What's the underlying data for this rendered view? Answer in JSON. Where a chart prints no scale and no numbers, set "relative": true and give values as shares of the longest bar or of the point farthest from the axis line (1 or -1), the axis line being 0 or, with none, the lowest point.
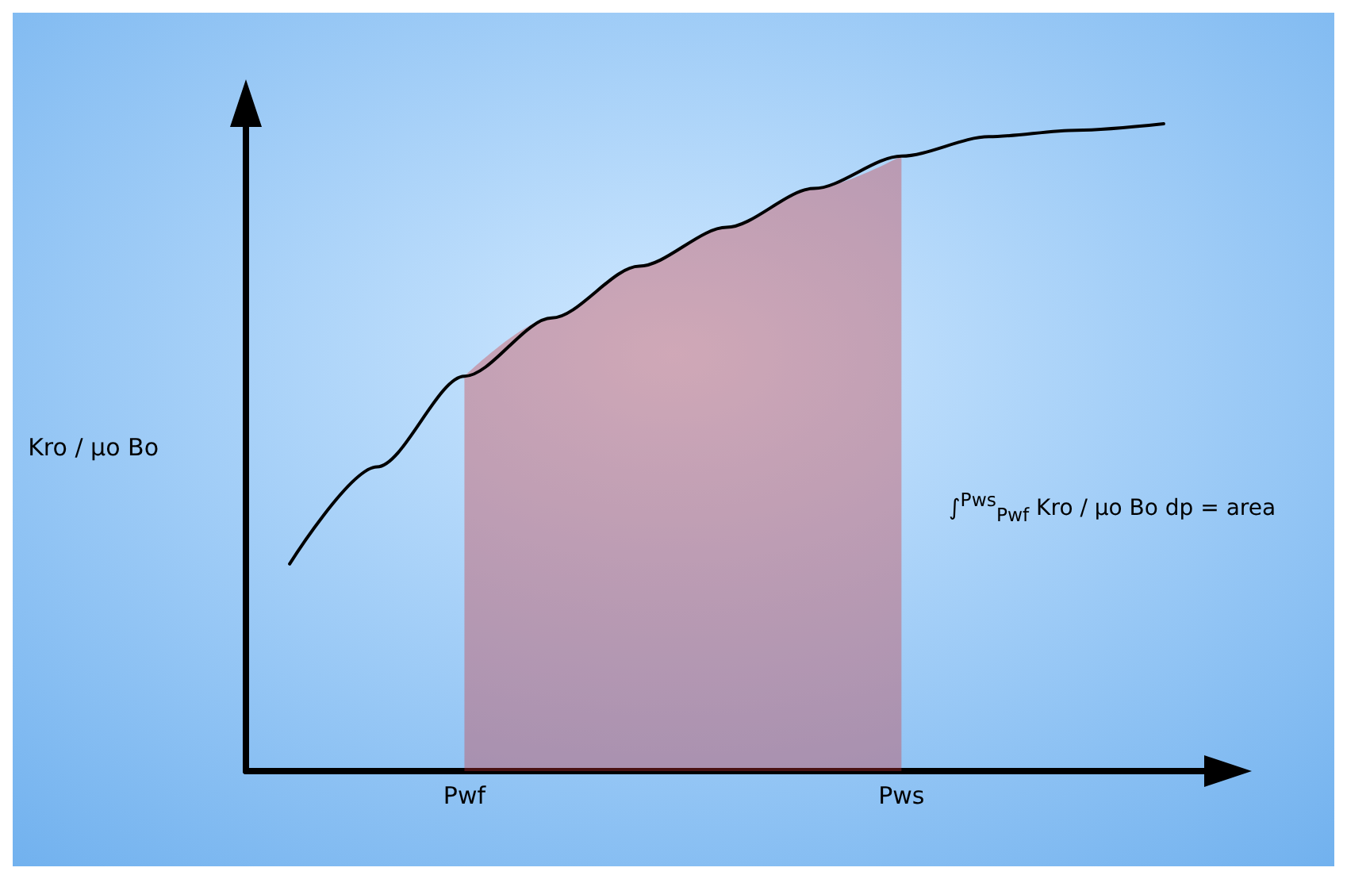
{
  "chart_data": {
    "type": "line",
    "relative": true,
    "ylabel": "Kro / μo Bo",
    "categories": [
      null,
      null,
      "Pwf",
      null,
      null,
      null,
      null,
      "Pws",
      null,
      null,
      null
    ],
    "series": [
      {
        "color": "#000000",
        "values": [
          0.32,
          0.47,
          0.61,
          0.7,
          0.78,
          0.84,
          0.9,
          0.95,
          0.98,
          0.99,
          1.0
        ]
      },
      {
        "type": "area",
        "color": "#d03030",
        "values": [
          null,
          null,
          0.61,
          0.7,
          0.78,
          0.84,
          0.9,
          0.95,
          null,
          null,
          null
        ]
      }
    ],
    "annotations": [
      "∫$^{Pws}$$_{Pwf}$ Kro / μo Bo dp = area"
    ],
    "marker": "none",
    "line_style": "solid"
  }
}
